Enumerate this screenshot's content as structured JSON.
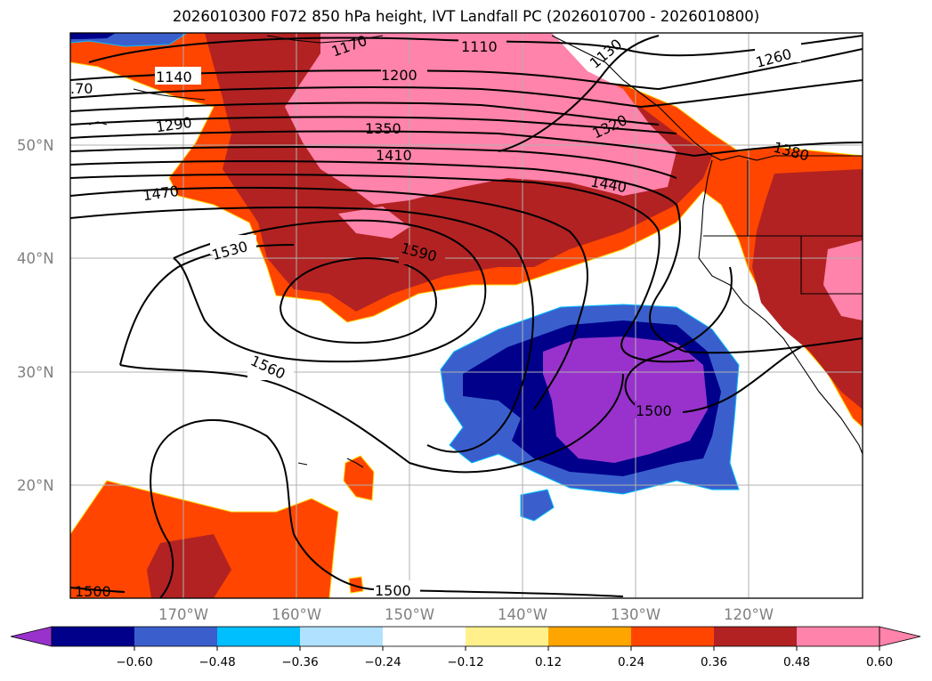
{
  "title": "2026010300 F072 850 hPa height, IVT Landfall PC (2026010700 - 2026010800)",
  "map": {
    "lat_labels": [
      "50°N",
      "40°N",
      "30°N",
      "20°N"
    ],
    "lon_labels": [
      "170°W",
      "160°W",
      "150°W",
      "140°W",
      "130°W",
      "120°W"
    ],
    "contour_labels": [
      "1110",
      "1130",
      "1140",
      "1170",
      "1200",
      "1260",
      "1290",
      "1320",
      "1350",
      "1380",
      "1410",
      "1440",
      "1470",
      "1500",
      "1500",
      "1500",
      "1530",
      "1560",
      "1590"
    ],
    "truncated_labels": [
      ".70",
      "1500"
    ]
  },
  "colorbar": {
    "ticks": [
      "−0.60",
      "−0.48",
      "−0.36",
      "−0.24",
      "−0.12",
      "0.12",
      "0.24",
      "0.36",
      "0.48",
      "0.60"
    ],
    "colors": [
      "#9932cc",
      "#00008b",
      "#3a5fcd",
      "#00bfff",
      "#b0e2ff",
      "#ffffff",
      "#fff08c",
      "#ffa500",
      "#ff4500",
      "#b22222",
      "#ff83aa",
      "#ff83aa"
    ],
    "extend": "both"
  }
}
